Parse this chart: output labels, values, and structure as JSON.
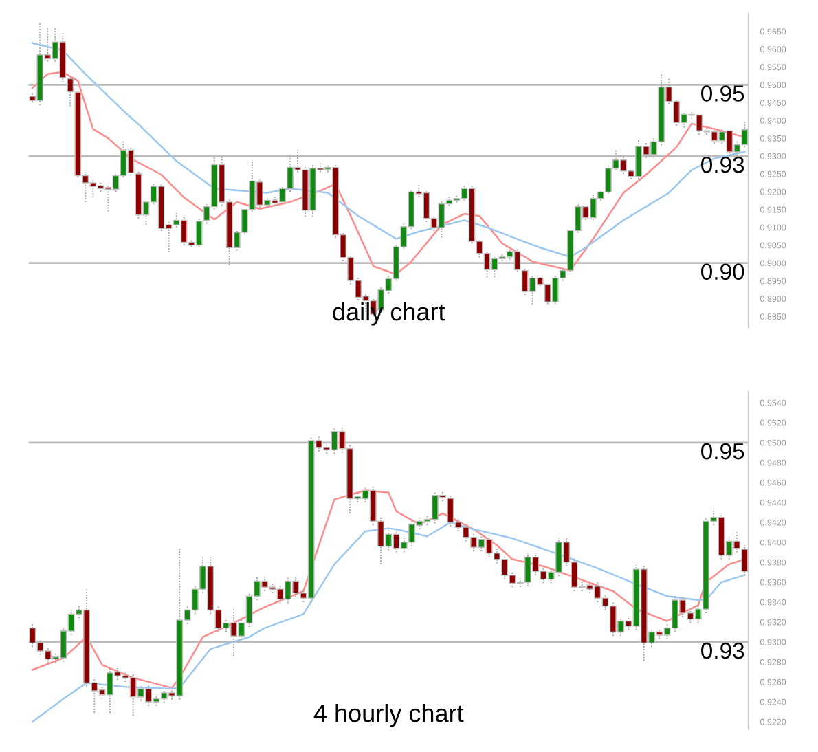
{
  "chart_data": [
    {
      "type": "candlestick",
      "title": "daily chart",
      "tick_labels": "y",
      "grid": false,
      "categories": [
        null,
        null,
        null,
        null,
        null,
        null,
        null,
        null,
        null,
        null,
        null,
        null,
        null,
        null,
        null,
        null,
        null,
        null,
        null,
        null,
        null,
        null,
        null,
        null,
        null,
        null,
        null,
        null,
        null,
        null,
        null,
        null,
        null,
        null,
        null,
        null,
        null,
        null,
        null,
        null,
        null,
        null,
        null,
        null,
        null,
        null,
        null,
        null,
        null,
        null,
        null,
        null,
        null,
        null,
        null,
        null,
        null,
        null,
        null,
        null,
        null,
        null,
        null,
        null,
        null,
        null,
        null,
        null,
        null,
        null,
        null,
        null,
        null,
        null,
        null,
        null,
        null,
        null,
        null,
        null,
        null,
        null,
        null,
        null,
        null,
        null,
        null,
        null,
        null,
        null,
        null,
        null,
        null,
        null,
        null
      ],
      "ohlc": [
        [
          0.9468,
          0.9475,
          0.945,
          0.9456
        ],
        [
          0.9456,
          0.9673,
          0.9443,
          0.9584
        ],
        [
          0.9584,
          0.9658,
          0.9565,
          0.9573
        ],
        [
          0.9573,
          0.9658,
          0.9565,
          0.962
        ],
        [
          0.962,
          0.9645,
          0.9507,
          0.952
        ],
        [
          0.9517,
          0.9525,
          0.944,
          0.9481
        ],
        [
          0.9479,
          0.9485,
          0.924,
          0.9245
        ],
        [
          0.9245,
          0.9255,
          0.9171,
          0.9225
        ],
        [
          0.9225,
          0.9235,
          0.9184,
          0.9215
        ],
        [
          0.9217,
          0.9225,
          0.92,
          0.9209
        ],
        [
          0.9212,
          0.922,
          0.9145,
          0.9207
        ],
        [
          0.9207,
          0.925,
          0.92,
          0.9245
        ],
        [
          0.9245,
          0.9343,
          0.924,
          0.9317
        ],
        [
          0.9317,
          0.9325,
          0.9245,
          0.9253
        ],
        [
          0.925,
          0.926,
          0.9125,
          0.9135
        ],
        [
          0.9135,
          0.9175,
          0.9107,
          0.9171
        ],
        [
          0.9171,
          0.9225,
          0.9165,
          0.9215
        ],
        [
          0.9215,
          0.922,
          0.909,
          0.9097
        ],
        [
          0.9107,
          0.9115,
          0.903,
          0.9097
        ],
        [
          0.9107,
          0.914,
          0.91,
          0.912
        ],
        [
          0.912,
          0.913,
          0.905,
          0.9058
        ],
        [
          0.9058,
          0.9065,
          0.9045,
          0.905
        ],
        [
          0.905,
          0.9125,
          0.9045,
          0.9117
        ],
        [
          0.912,
          0.9165,
          0.911,
          0.9158
        ],
        [
          0.9158,
          0.9299,
          0.915,
          0.9276
        ],
        [
          0.9276,
          0.9299,
          0.916,
          0.9171
        ],
        [
          0.9171,
          0.918,
          0.8994,
          0.9043
        ],
        [
          0.9043,
          0.909,
          0.9035,
          0.9086
        ],
        [
          0.9086,
          0.9155,
          0.908,
          0.915
        ],
        [
          0.915,
          0.9289,
          0.9145,
          0.923
        ],
        [
          0.9227,
          0.9235,
          0.9155,
          0.9163
        ],
        [
          0.9163,
          0.9185,
          0.9155,
          0.9176
        ],
        [
          0.9176,
          0.9185,
          0.916,
          0.9168
        ],
        [
          0.9171,
          0.9215,
          0.9165,
          0.9209
        ],
        [
          0.9209,
          0.9299,
          0.92,
          0.9268
        ],
        [
          0.9268,
          0.9317,
          0.9255,
          0.9261
        ],
        [
          0.9261,
          0.927,
          0.913,
          0.9148
        ],
        [
          0.9148,
          0.9275,
          0.913,
          0.9266
        ],
        [
          0.9266,
          0.928,
          0.9255,
          0.9261
        ],
        [
          0.9263,
          0.9275,
          0.9255,
          0.9268
        ],
        [
          0.9268,
          0.9275,
          0.907,
          0.9079
        ],
        [
          0.9079,
          0.9085,
          0.9005,
          0.9015
        ],
        [
          0.9015,
          0.902,
          0.894,
          0.8951
        ],
        [
          0.8951,
          0.896,
          0.8895,
          0.8904
        ],
        [
          0.8907,
          0.8915,
          0.8863,
          0.8894
        ],
        [
          0.8894,
          0.89,
          0.885,
          0.8856
        ],
        [
          0.8868,
          0.8935,
          0.886,
          0.8925
        ],
        [
          0.8922,
          0.8965,
          0.8915,
          0.8956
        ],
        [
          0.8956,
          0.905,
          0.895,
          0.9045
        ],
        [
          0.9045,
          0.911,
          0.904,
          0.9102
        ],
        [
          0.9102,
          0.9205,
          0.9095,
          0.9199
        ],
        [
          0.9199,
          0.922,
          0.9185,
          0.9194
        ],
        [
          0.9197,
          0.9205,
          0.9115,
          0.9125
        ],
        [
          0.9125,
          0.913,
          0.909,
          0.9099
        ],
        [
          0.9099,
          0.9175,
          0.9071,
          0.9166
        ],
        [
          0.9166,
          0.9185,
          0.916,
          0.9176
        ],
        [
          0.9176,
          0.919,
          0.917,
          0.9181
        ],
        [
          0.9181,
          0.922,
          0.9175,
          0.9209
        ],
        [
          0.9209,
          0.9215,
          0.9055,
          0.9061
        ],
        [
          0.9061,
          0.9065,
          0.9015,
          0.9027
        ],
        [
          0.9027,
          0.903,
          0.896,
          0.8981
        ],
        [
          0.8981,
          0.902,
          0.896,
          0.9012
        ],
        [
          0.9012,
          0.9025,
          0.9005,
          0.9017
        ],
        [
          0.9017,
          0.904,
          0.901,
          0.9032
        ],
        [
          0.9032,
          0.904,
          0.8975,
          0.8981
        ],
        [
          0.8979,
          0.8985,
          0.891,
          0.892
        ],
        [
          0.892,
          0.8965,
          0.8884,
          0.8958
        ],
        [
          0.8958,
          0.8965,
          0.8935,
          0.894
        ],
        [
          0.894,
          0.8945,
          0.8885,
          0.8891
        ],
        [
          0.8891,
          0.8965,
          0.8885,
          0.8958
        ],
        [
          0.8958,
          0.8985,
          0.895,
          0.8979
        ],
        [
          0.8979,
          0.9095,
          0.8975,
          0.9091
        ],
        [
          0.9091,
          0.9165,
          0.9085,
          0.9158
        ],
        [
          0.9158,
          0.9165,
          0.912,
          0.9127
        ],
        [
          0.9127,
          0.919,
          0.912,
          0.9181
        ],
        [
          0.9181,
          0.9205,
          0.9175,
          0.9199
        ],
        [
          0.9199,
          0.9275,
          0.9195,
          0.9266
        ],
        [
          0.9266,
          0.9317,
          0.926,
          0.9289
        ],
        [
          0.9289,
          0.93,
          0.925,
          0.9258
        ],
        [
          0.9258,
          0.9265,
          0.9235,
          0.9243
        ],
        [
          0.9243,
          0.9345,
          0.9235,
          0.9327
        ],
        [
          0.9327,
          0.934,
          0.9295,
          0.9304
        ],
        [
          0.9304,
          0.935,
          0.9295,
          0.934
        ],
        [
          0.934,
          0.953,
          0.933,
          0.9494
        ],
        [
          0.9494,
          0.952,
          0.9445,
          0.9453
        ],
        [
          0.9453,
          0.946,
          0.9385,
          0.9394
        ],
        [
          0.9394,
          0.9425,
          0.938,
          0.9417
        ],
        [
          0.9417,
          0.9425,
          0.9405,
          0.9415
        ],
        [
          0.9415,
          0.942,
          0.936,
          0.9371
        ],
        [
          0.9371,
          0.938,
          0.936,
          0.9368
        ],
        [
          0.9368,
          0.9375,
          0.9335,
          0.9343
        ],
        [
          0.9343,
          0.9375,
          0.9335,
          0.9368
        ],
        [
          0.9371,
          0.9375,
          0.93,
          0.9312
        ],
        [
          0.9312,
          0.934,
          0.93,
          0.9332
        ],
        [
          0.9332,
          0.9399,
          0.9325,
          0.9374
        ]
      ],
      "series": [
        {
          "type": "line",
          "color": "#ff8c8c",
          "values": [
            0.9491,
            null,
            0.953,
            null,
            0.9536,
            null,
            0.9511,
            null,
            0.9376,
            null,
            0.935,
            null,
            null,
            0.9293,
            null,
            null,
            null,
            0.9248,
            null,
            null,
            0.9184,
            null,
            null,
            null,
            0.9122,
            null,
            null,
            0.9171,
            null,
            null,
            0.9152,
            null,
            null,
            null,
            0.9171,
            null,
            null,
            null,
            0.9203,
            null,
            0.9222,
            null,
            0.9132,
            null,
            null,
            0.8991,
            null,
            null,
            0.8968,
            null,
            0.9004,
            null,
            null,
            null,
            0.9107,
            null,
            null,
            0.9138,
            null,
            0.9132,
            null,
            null,
            0.9055,
            null,
            null,
            null,
            0.9004,
            null,
            null,
            null,
            null,
            0.8979,
            null,
            null,
            0.9068,
            null,
            null,
            null,
            0.9197,
            null,
            null,
            0.9248,
            null,
            null,
            null,
            0.9325,
            null,
            0.9391,
            null,
            null,
            0.9376,
            null,
            null,
            null,
            0.9353
          ]
        },
        {
          "type": "line",
          "color": "#9cc8f0",
          "values": [
            0.9617,
            null,
            null,
            null,
            0.9597,
            null,
            null,
            0.953,
            null,
            null,
            null,
            null,
            0.9427,
            null,
            0.9389,
            null,
            null,
            null,
            null,
            0.9286,
            null,
            null,
            null,
            null,
            0.9209,
            null,
            null,
            null,
            null,
            null,
            null,
            0.9197,
            null,
            null,
            0.9209,
            null,
            null,
            null,
            null,
            0.9197,
            null,
            null,
            null,
            0.9132,
            null,
            null,
            null,
            null,
            0.9068,
            null,
            null,
            0.9088,
            null,
            null,
            null,
            null,
            null,
            0.912,
            null,
            null,
            0.91,
            null,
            null,
            0.9075,
            null,
            null,
            null,
            0.9043,
            null,
            null,
            null,
            0.9017,
            null,
            0.9043,
            null,
            null,
            null,
            null,
            0.912,
            null,
            null,
            null,
            0.9171,
            null,
            0.9197,
            null,
            null,
            0.9261,
            null,
            null,
            0.9293,
            null,
            null,
            null,
            0.9312
          ]
        }
      ],
      "ylim": [
        0.882,
        0.97
      ],
      "yticks": [
        {
          "value": 0.885,
          "label": "0.8850"
        },
        {
          "value": 0.89,
          "label": "0.8900"
        },
        {
          "value": 0.895,
          "label": "0.8950"
        },
        {
          "value": 0.9,
          "label": "0.9000"
        },
        {
          "value": 0.905,
          "label": "0.9050"
        },
        {
          "value": 0.91,
          "label": "0.9100"
        },
        {
          "value": 0.915,
          "label": "0.9150"
        },
        {
          "value": 0.92,
          "label": "0.9200"
        },
        {
          "value": 0.925,
          "label": "0.9250"
        },
        {
          "value": 0.93,
          "label": "0.9300"
        },
        {
          "value": 0.935,
          "label": "0.9350"
        },
        {
          "value": 0.94,
          "label": "0.9400"
        },
        {
          "value": 0.945,
          "label": "0.9450"
        },
        {
          "value": 0.95,
          "label": "0.9500"
        },
        {
          "value": 0.955,
          "label": "0.9550"
        },
        {
          "value": 0.96,
          "label": "0.9600"
        },
        {
          "value": 0.965,
          "label": "0.9650"
        }
      ],
      "ref_lines": [
        {
          "axis": "y",
          "value": 0.95,
          "label": "0.95",
          "color": "#bbbbbb"
        },
        {
          "axis": "y",
          "value": 0.93,
          "label": "0.93",
          "color": "#bbbbbb"
        },
        {
          "axis": "y",
          "value": 0.9,
          "label": "0.90",
          "color": "#bbbbbb"
        }
      ]
    },
    {
      "type": "candlestick",
      "title": "4 hourly chart",
      "tick_labels": "y",
      "grid": false,
      "categories": [
        null,
        null,
        null,
        null,
        null,
        null,
        null,
        null,
        null,
        null,
        null,
        null,
        null,
        null,
        null,
        null,
        null,
        null,
        null,
        null,
        null,
        null,
        null,
        null,
        null,
        null,
        null,
        null,
        null,
        null,
        null,
        null,
        null,
        null,
        null,
        null,
        null,
        null,
        null,
        null,
        null,
        null,
        null,
        null,
        null,
        null,
        null,
        null,
        null,
        null,
        null,
        null,
        null,
        null,
        null,
        null,
        null,
        null,
        null,
        null,
        null,
        null,
        null,
        null,
        null,
        null,
        null,
        null,
        null,
        null,
        null,
        null,
        null,
        null,
        null,
        null,
        null,
        null,
        null,
        null,
        null,
        null,
        null,
        null,
        null,
        null,
        null,
        null,
        null,
        null,
        null,
        null,
        null
      ],
      "ohlc": [
        [
          0.9314,
          0.9318,
          0.9295,
          0.9299
        ],
        [
          0.9299,
          0.9303,
          0.9287,
          0.9291
        ],
        [
          0.9291,
          0.9295,
          0.9279,
          0.9283
        ],
        [
          0.9283,
          0.9289,
          0.9279,
          0.9285
        ],
        [
          0.9284,
          0.9315,
          0.928,
          0.9311
        ],
        [
          0.9311,
          0.9332,
          0.9307,
          0.9328
        ],
        [
          0.9328,
          0.9337,
          0.9324,
          0.9332
        ],
        [
          0.9332,
          0.9353,
          0.9255,
          0.9259
        ],
        [
          0.9259,
          0.9263,
          0.9229,
          0.9251
        ],
        [
          0.9252,
          0.9256,
          0.9243,
          0.9247
        ],
        [
          0.9247,
          0.9273,
          0.9229,
          0.9269
        ],
        [
          0.927,
          0.9274,
          0.9262,
          0.9266
        ],
        [
          0.9266,
          0.927,
          0.926,
          0.9264
        ],
        [
          0.9264,
          0.9268,
          0.9226,
          0.9245
        ],
        [
          0.9245,
          0.9257,
          0.9241,
          0.9253
        ],
        [
          0.9253,
          0.9257,
          0.9236,
          0.924
        ],
        [
          0.924,
          0.9247,
          0.9236,
          0.9243
        ],
        [
          0.9243,
          0.9253,
          0.9239,
          0.9249
        ],
        [
          0.9249,
          0.9253,
          0.9242,
          0.9246
        ],
        [
          0.9246,
          0.9394,
          0.9242,
          0.9322
        ],
        [
          0.9322,
          0.9336,
          0.9318,
          0.9332
        ],
        [
          0.9332,
          0.9357,
          0.9328,
          0.9353
        ],
        [
          0.9353,
          0.9385,
          0.9349,
          0.9376
        ],
        [
          0.9376,
          0.9385,
          0.9328,
          0.9332
        ],
        [
          0.9332,
          0.9336,
          0.931,
          0.9314
        ],
        [
          0.9314,
          0.9323,
          0.931,
          0.9319
        ],
        [
          0.9319,
          0.9333,
          0.9286,
          0.9306
        ],
        [
          0.9306,
          0.9323,
          0.9302,
          0.9319
        ],
        [
          0.9319,
          0.935,
          0.9315,
          0.9346
        ],
        [
          0.9346,
          0.9365,
          0.9342,
          0.9361
        ],
        [
          0.9361,
          0.9365,
          0.9351,
          0.9355
        ],
        [
          0.9355,
          0.9359,
          0.9349,
          0.9353
        ],
        [
          0.9353,
          0.9357,
          0.9339,
          0.9343
        ],
        [
          0.9343,
          0.9365,
          0.9339,
          0.9361
        ],
        [
          0.9361,
          0.9365,
          0.9345,
          0.9349
        ],
        [
          0.9349,
          0.9353,
          0.934,
          0.9344
        ],
        [
          0.9344,
          0.9506,
          0.934,
          0.9502
        ],
        [
          0.9502,
          0.9506,
          0.9491,
          0.9495
        ],
        [
          0.9495,
          0.9499,
          0.9489,
          0.9493
        ],
        [
          0.9493,
          0.9515,
          0.9489,
          0.9511
        ],
        [
          0.9511,
          0.9515,
          0.949,
          0.9494
        ],
        [
          0.9494,
          0.9498,
          0.9429,
          0.9444
        ],
        [
          0.9444,
          0.945,
          0.944,
          0.9446
        ],
        [
          0.9444,
          0.9456,
          0.944,
          0.9452
        ],
        [
          0.9452,
          0.9456,
          0.9417,
          0.9421
        ],
        [
          0.9421,
          0.9425,
          0.9378,
          0.9396
        ],
        [
          0.9396,
          0.9412,
          0.9392,
          0.9408
        ],
        [
          0.9408,
          0.9412,
          0.939,
          0.9394
        ],
        [
          0.9394,
          0.9404,
          0.939,
          0.94
        ],
        [
          0.94,
          0.9422,
          0.9396,
          0.9418
        ],
        [
          0.9417,
          0.9425,
          0.9413,
          0.9421
        ],
        [
          0.9421,
          0.9427,
          0.9417,
          0.9423
        ],
        [
          0.9423,
          0.9451,
          0.9419,
          0.9447
        ],
        [
          0.9447,
          0.9451,
          0.9441,
          0.9445
        ],
        [
          0.9444,
          0.9448,
          0.9416,
          0.942
        ],
        [
          0.942,
          0.9424,
          0.9411,
          0.9415
        ],
        [
          0.9415,
          0.9419,
          0.9401,
          0.9405
        ],
        [
          0.9405,
          0.9409,
          0.9391,
          0.9395
        ],
        [
          0.9395,
          0.9407,
          0.9391,
          0.9403
        ],
        [
          0.9403,
          0.9407,
          0.9385,
          0.9389
        ],
        [
          0.9389,
          0.9393,
          0.9379,
          0.9383
        ],
        [
          0.9383,
          0.9387,
          0.9363,
          0.9367
        ],
        [
          0.9367,
          0.9371,
          0.9355,
          0.9359
        ],
        [
          0.936,
          0.9364,
          0.9355,
          0.9359
        ],
        [
          0.936,
          0.9389,
          0.9356,
          0.9385
        ],
        [
          0.9385,
          0.9389,
          0.9367,
          0.9371
        ],
        [
          0.9371,
          0.9375,
          0.9359,
          0.9363
        ],
        [
          0.9363,
          0.9374,
          0.9359,
          0.937
        ],
        [
          0.937,
          0.9404,
          0.9366,
          0.94
        ],
        [
          0.94,
          0.9404,
          0.9376,
          0.938
        ],
        [
          0.938,
          0.9384,
          0.9351,
          0.9355
        ],
        [
          0.9355,
          0.936,
          0.9351,
          0.9356
        ],
        [
          0.9357,
          0.9361,
          0.9349,
          0.9353
        ],
        [
          0.9356,
          0.936,
          0.934,
          0.9344
        ],
        [
          0.9344,
          0.9348,
          0.9332,
          0.9336
        ],
        [
          0.9336,
          0.934,
          0.9306,
          0.931
        ],
        [
          0.931,
          0.9325,
          0.9306,
          0.9321
        ],
        [
          0.9321,
          0.9325,
          0.9312,
          0.9316
        ],
        [
          0.9316,
          0.9377,
          0.9312,
          0.9373
        ],
        [
          0.9373,
          0.9377,
          0.9281,
          0.9299
        ],
        [
          0.9299,
          0.9314,
          0.9295,
          0.931
        ],
        [
          0.931,
          0.9314,
          0.9303,
          0.9307
        ],
        [
          0.9307,
          0.9318,
          0.9303,
          0.9314
        ],
        [
          0.9314,
          0.9346,
          0.931,
          0.9342
        ],
        [
          0.9342,
          0.9346,
          0.9325,
          0.9329
        ],
        [
          0.9329,
          0.9333,
          0.9319,
          0.9323
        ],
        [
          0.9323,
          0.9337,
          0.9319,
          0.9333
        ],
        [
          0.9333,
          0.9425,
          0.9329,
          0.9421
        ],
        [
          0.9421,
          0.9434,
          0.9417,
          0.9425
        ],
        [
          0.9425,
          0.9429,
          0.9383,
          0.9387
        ],
        [
          0.9387,
          0.9405,
          0.9383,
          0.9401
        ],
        [
          0.9401,
          0.941,
          0.939,
          0.9394
        ],
        [
          0.9393,
          0.9397,
          0.9367,
          0.9371
        ]
      ],
      "series": [
        {
          "type": "line",
          "color": "#ff8c8c",
          "values": [
            0.9272,
            null,
            null,
            null,
            0.9284,
            null,
            null,
            0.9305,
            null,
            0.9277,
            null,
            null,
            null,
            0.9264,
            null,
            null,
            null,
            null,
            0.9254,
            0.9264,
            null,
            null,
            0.9305,
            null,
            null,
            null,
            0.9319,
            null,
            null,
            null,
            0.9335,
            null,
            null,
            null,
            null,
            0.9351,
            null,
            null,
            null,
            0.9443,
            null,
            null,
            null,
            0.9452,
            null,
            null,
            0.945,
            0.9431,
            null,
            null,
            0.9418,
            null,
            null,
            0.9429,
            null,
            null,
            null,
            0.9413,
            null,
            null,
            0.9397,
            null,
            0.9383,
            null,
            null,
            null,
            0.9376,
            null,
            null,
            null,
            0.9365,
            null,
            null,
            null,
            null,
            0.9351,
            null,
            null,
            0.9333,
            null,
            null,
            null,
            0.9321,
            null,
            null,
            null,
            0.9337,
            0.936,
            null,
            null,
            0.9378,
            null,
            0.9383
          ]
        },
        {
          "type": "line",
          "color": "#9cc8f0",
          "values": [
            0.922,
            null,
            null,
            null,
            0.9243,
            null,
            null,
            0.9259,
            null,
            null,
            null,
            null,
            0.9255,
            null,
            null,
            null,
            null,
            null,
            0.9253,
            0.9254,
            null,
            null,
            null,
            0.9293,
            null,
            null,
            null,
            null,
            0.9305,
            null,
            0.9314,
            null,
            null,
            null,
            null,
            0.9328,
            null,
            null,
            null,
            0.9378,
            null,
            null,
            null,
            0.9411,
            null,
            null,
            0.9414,
            0.9413,
            null,
            null,
            null,
            0.9406,
            null,
            null,
            0.942,
            null,
            null,
            0.9413,
            null,
            null,
            null,
            null,
            0.9404,
            null,
            null,
            null,
            null,
            null,
            0.9388,
            null,
            null,
            null,
            null,
            0.9374,
            null,
            null,
            null,
            null,
            0.9358,
            null,
            null,
            null,
            0.9346,
            null,
            null,
            null,
            0.9342,
            0.9342,
            null,
            0.936,
            null,
            null,
            0.9367
          ]
        }
      ],
      "ylim": [
        0.9213,
        0.9551
      ],
      "yticks": [
        {
          "value": 0.922,
          "label": "0.9220"
        },
        {
          "value": 0.924,
          "label": "0.9240"
        },
        {
          "value": 0.926,
          "label": "0.9260"
        },
        {
          "value": 0.928,
          "label": "0.9280"
        },
        {
          "value": 0.93,
          "label": "0.9300"
        },
        {
          "value": 0.932,
          "label": "0.9320"
        },
        {
          "value": 0.934,
          "label": "0.9340"
        },
        {
          "value": 0.936,
          "label": "0.9360"
        },
        {
          "value": 0.938,
          "label": "0.9380"
        },
        {
          "value": 0.94,
          "label": "0.9400"
        },
        {
          "value": 0.942,
          "label": "0.9420"
        },
        {
          "value": 0.944,
          "label": "0.9440"
        },
        {
          "value": 0.946,
          "label": "0.9460"
        },
        {
          "value": 0.948,
          "label": "0.9480"
        },
        {
          "value": 0.95,
          "label": "0.9500"
        },
        {
          "value": 0.952,
          "label": "0.9520"
        },
        {
          "value": 0.954,
          "label": "0.9540"
        }
      ],
      "ref_lines": [
        {
          "axis": "y",
          "value": 0.95,
          "label": "0.95",
          "color": "#bbbbbb"
        },
        {
          "axis": "y",
          "value": 0.93,
          "label": "0.93",
          "color": "#bbbbbb"
        }
      ]
    }
  ]
}
